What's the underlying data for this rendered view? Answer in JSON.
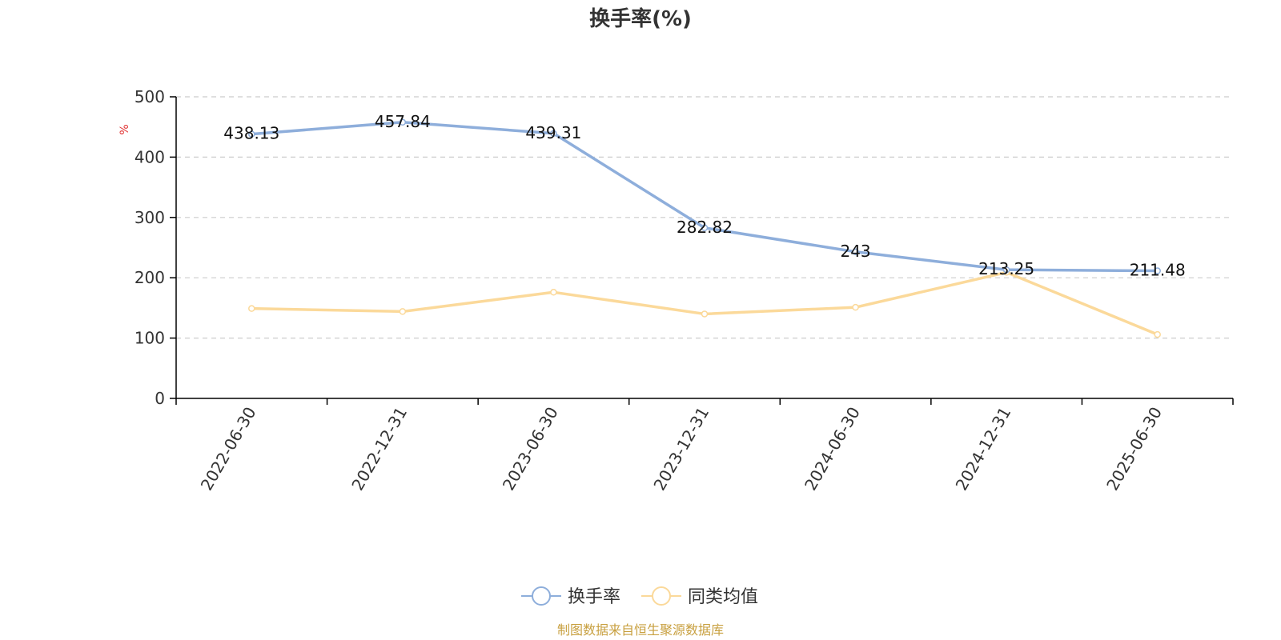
{
  "chart_data": {
    "type": "line",
    "title": "换手率(%)",
    "ylabel": "%",
    "ylim": [
      0,
      500
    ],
    "yticks": [
      0,
      100,
      200,
      300,
      400,
      500
    ],
    "categories": [
      "2022-06-30",
      "2022-12-31",
      "2023-06-30",
      "2023-12-31",
      "2024-06-30",
      "2024-12-31",
      "2025-06-30"
    ],
    "series": [
      {
        "name": "换手率",
        "values": [
          438.13,
          457.84,
          439.31,
          282.82,
          243,
          213.25,
          211.48
        ],
        "labels": [
          "438.13",
          "457.84",
          "439.31",
          "282.82",
          "243",
          "213.25",
          "211.48"
        ],
        "color": "#8eaedb"
      },
      {
        "name": "同类均值",
        "values": [
          149,
          144,
          176,
          140,
          151,
          209,
          106
        ],
        "color": "#fbd99a"
      }
    ],
    "grid": true,
    "legend_position": "bottom"
  },
  "unit_color": "#e03030",
  "source_text": "制图数据来自恒生聚源数据库",
  "source_color": "#c8a040"
}
